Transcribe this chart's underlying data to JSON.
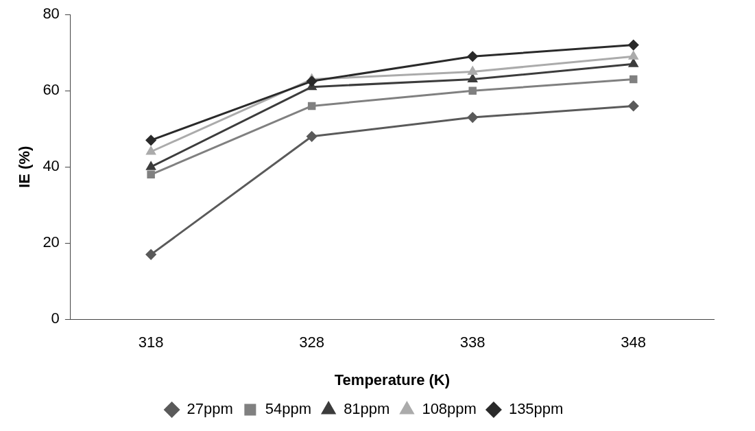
{
  "chart_data": {
    "type": "line",
    "xlabel": "Temperature (K)",
    "ylabel": "IE (%)",
    "categories": [
      "318",
      "328",
      "338",
      "348"
    ],
    "ylim": [
      0,
      80
    ],
    "yticks": [
      0,
      20,
      40,
      60,
      80
    ],
    "grid": false,
    "legend": "bottom",
    "line_style": "solid",
    "series": [
      {
        "name": "27ppm",
        "color": "#5a5a5a",
        "marker": "diamond",
        "values": [
          17,
          48,
          53,
          56
        ]
      },
      {
        "name": "54ppm",
        "color": "#808080",
        "marker": "square",
        "values": [
          38,
          56,
          60,
          63
        ]
      },
      {
        "name": "81ppm",
        "color": "#3c3c3c",
        "marker": "triangle",
        "values": [
          40,
          61,
          63,
          67
        ]
      },
      {
        "name": "108ppm",
        "color": "#ababab",
        "marker": "triangle",
        "values": [
          44,
          63,
          65,
          69
        ]
      },
      {
        "name": "135ppm",
        "color": "#2a2a2a",
        "marker": "diamond",
        "values": [
          47,
          62.5,
          69,
          72
        ]
      }
    ]
  }
}
